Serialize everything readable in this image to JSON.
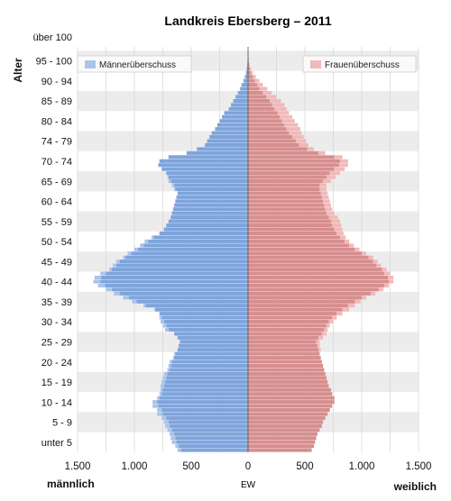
{
  "chart_data": {
    "type": "bar",
    "subtype": "population-pyramid",
    "title": "Landkreis Ebersberg – 2011",
    "ylabel": "Alter",
    "xlabel": "EW",
    "left_label": "männlich",
    "right_label": "weiblich",
    "xlim": [
      -1500,
      1500
    ],
    "x_ticks": [
      {
        "value": -1500,
        "label": "1.500"
      },
      {
        "value": -1000,
        "label": "1.000"
      },
      {
        "value": -500,
        "label": "500"
      },
      {
        "value": 0,
        "label": "0"
      },
      {
        "value": 500,
        "label": "500"
      },
      {
        "value": 1000,
        "label": "1.000"
      },
      {
        "value": 1500,
        "label": "1.500"
      }
    ],
    "age_group_labels": [
      {
        "age": 2,
        "label": "unter 5"
      },
      {
        "age": 7,
        "label": "5 - 9"
      },
      {
        "age": 12,
        "label": "10 - 14"
      },
      {
        "age": 17,
        "label": "15 - 19"
      },
      {
        "age": 22,
        "label": "20 - 24"
      },
      {
        "age": 27,
        "label": "25 - 29"
      },
      {
        "age": 32,
        "label": "30 - 34"
      },
      {
        "age": 37,
        "label": "35 - 39"
      },
      {
        "age": 42,
        "label": "40 - 44"
      },
      {
        "age": 47,
        "label": "45 - 49"
      },
      {
        "age": 52,
        "label": "50 - 54"
      },
      {
        "age": 57,
        "label": "55 - 59"
      },
      {
        "age": 62,
        "label": "60 - 64"
      },
      {
        "age": 67,
        "label": "65 - 69"
      },
      {
        "age": 72,
        "label": "70 - 74"
      },
      {
        "age": 77,
        "label": "74 - 79"
      },
      {
        "age": 82,
        "label": "80 - 84"
      },
      {
        "age": 87,
        "label": "85 - 89"
      },
      {
        "age": 92,
        "label": "90 - 94"
      },
      {
        "age": 97,
        "label": "95 - 100"
      },
      {
        "age": 101,
        "label": "über 100"
      }
    ],
    "legend": [
      {
        "name": "Männerüberschuss",
        "color": "#a9c4ea",
        "position": "top-left"
      },
      {
        "name": "Frauenüberschuss",
        "color": "#f1b9b9",
        "position": "top-right"
      }
    ],
    "colors": {
      "male": "#7ea4dc",
      "female": "#d78e8e",
      "male_surplus": "#a9c4ea",
      "female_surplus": "#f1b9b9",
      "band": "#ececec"
    },
    "ages": [
      0,
      1,
      2,
      3,
      4,
      5,
      6,
      7,
      8,
      9,
      10,
      11,
      12,
      13,
      14,
      15,
      16,
      17,
      18,
      19,
      20,
      21,
      22,
      23,
      24,
      25,
      26,
      27,
      28,
      29,
      30,
      31,
      32,
      33,
      34,
      35,
      36,
      37,
      38,
      39,
      40,
      41,
      42,
      43,
      44,
      45,
      46,
      47,
      48,
      49,
      50,
      51,
      52,
      53,
      54,
      55,
      56,
      57,
      58,
      59,
      60,
      61,
      62,
      63,
      64,
      65,
      66,
      67,
      68,
      69,
      70,
      71,
      72,
      73,
      74,
      75,
      76,
      77,
      78,
      79,
      80,
      81,
      82,
      83,
      84,
      85,
      86,
      87,
      88,
      89,
      90,
      91,
      92,
      93,
      94,
      95,
      96,
      97,
      98,
      99,
      100
    ],
    "series": [
      {
        "name": "männlich",
        "values": [
          590,
          610,
          630,
          640,
          650,
          670,
          690,
          700,
          720,
          750,
          760,
          790,
          800,
          780,
          760,
          750,
          740,
          730,
          720,
          710,
          690,
          680,
          670,
          650,
          640,
          620,
          610,
          600,
          620,
          650,
          700,
          720,
          740,
          760,
          780,
          820,
          900,
          980,
          1050,
          1130,
          1200,
          1260,
          1300,
          1290,
          1250,
          1200,
          1160,
          1130,
          1080,
          1030,
          970,
          920,
          880,
          830,
          780,
          740,
          720,
          700,
          680,
          670,
          660,
          650,
          640,
          630,
          620,
          640,
          650,
          680,
          700,
          720,
          760,
          790,
          780,
          700,
          540,
          450,
          380,
          360,
          340,
          320,
          290,
          270,
          250,
          230,
          210,
          170,
          150,
          130,
          110,
          90,
          70,
          55,
          40,
          28,
          18,
          11,
          7,
          4,
          2,
          1,
          0
        ]
      },
      {
        "name": "weiblich",
        "values": [
          560,
          580,
          590,
          600,
          610,
          630,
          650,
          660,
          680,
          700,
          720,
          740,
          760,
          760,
          740,
          730,
          710,
          700,
          690,
          680,
          670,
          660,
          650,
          640,
          630,
          620,
          610,
          600,
          620,
          650,
          670,
          690,
          710,
          740,
          780,
          830,
          880,
          940,
          1000,
          1080,
          1150,
          1200,
          1240,
          1230,
          1200,
          1180,
          1130,
          1100,
          1060,
          1000,
          940,
          890,
          850,
          810,
          780,
          760,
          740,
          730,
          710,
          690,
          680,
          670,
          660,
          650,
          640,
          630,
          630,
          660,
          690,
          720,
          760,
          800,
          810,
          760,
          620,
          520,
          450,
          420,
          390,
          360,
          340,
          320,
          300,
          280,
          260,
          230,
          210,
          190,
          160,
          130,
          100,
          80,
          60,
          40,
          25,
          15,
          9,
          5,
          3,
          1,
          0
        ]
      },
      {
        "name": "Frauenüberschuss",
        "values": [
          0,
          0,
          0,
          0,
          0,
          0,
          0,
          0,
          0,
          0,
          0,
          0,
          0,
          0,
          0,
          0,
          0,
          0,
          0,
          0,
          0,
          0,
          0,
          0,
          0,
          20,
          20,
          30,
          40,
          40,
          30,
          30,
          40,
          40,
          50,
          60,
          60,
          50,
          40,
          40,
          40,
          40,
          40,
          50,
          50,
          40,
          40,
          40,
          40,
          40,
          40,
          40,
          40,
          50,
          60,
          70,
          80,
          80,
          80,
          70,
          60,
          60,
          60,
          60,
          60,
          60,
          60,
          70,
          80,
          90,
          90,
          80,
          70,
          70,
          60,
          60,
          80,
          90,
          100,
          110,
          120,
          120,
          110,
          110,
          100,
          110,
          110,
          100,
          90,
          80,
          70,
          50,
          40,
          28,
          18,
          11,
          7,
          4,
          2,
          1,
          0
        ]
      },
      {
        "name": "Männerüberschuss",
        "values": [
          30,
          30,
          40,
          40,
          40,
          40,
          40,
          40,
          40,
          50,
          40,
          50,
          40,
          20,
          20,
          20,
          30,
          30,
          30,
          30,
          20,
          20,
          20,
          10,
          10,
          0,
          0,
          0,
          0,
          0,
          30,
          30,
          30,
          20,
          0,
          0,
          20,
          40,
          50,
          50,
          50,
          60,
          60,
          60,
          50,
          20,
          30,
          30,
          20,
          30,
          30,
          30,
          30,
          20,
          0,
          0,
          0,
          0,
          0,
          0,
          0,
          0,
          0,
          0,
          0,
          10,
          20,
          20,
          10,
          0,
          0,
          0,
          0,
          0,
          0,
          0,
          0,
          0,
          0,
          0,
          0,
          0,
          0,
          0,
          0,
          0,
          0,
          0,
          0,
          0,
          0,
          5,
          0,
          0,
          0,
          0,
          0,
          0,
          0,
          0,
          0
        ]
      }
    ]
  }
}
